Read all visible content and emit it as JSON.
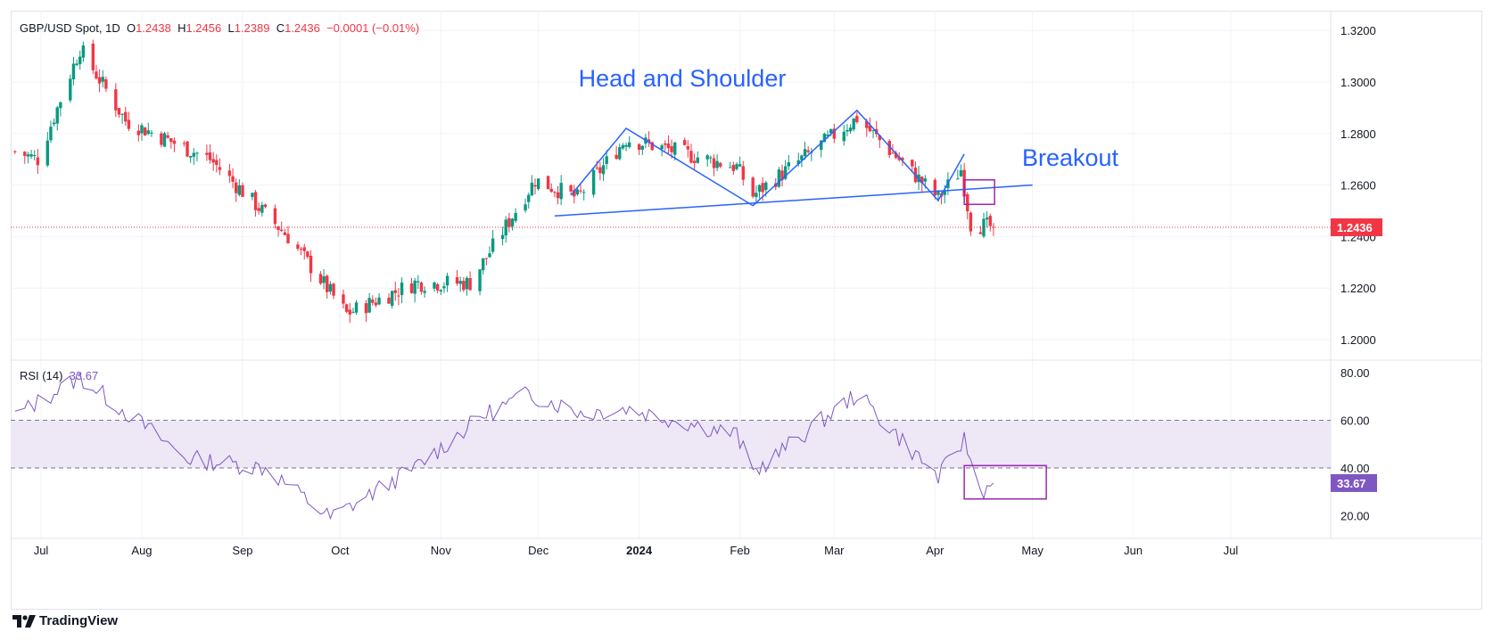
{
  "header": {
    "symbol": "GBP/USD Spot, 1D",
    "o_label": "O",
    "o_value": "1.2438",
    "h_label": "H",
    "h_value": "1.2456",
    "l_label": "L",
    "l_value": "1.2389",
    "c_label": "C",
    "c_value": "1.2436",
    "change": "−0.0001 (−0.01%)"
  },
  "rsi_legend": {
    "name": "RSI (14)",
    "value": "33.67"
  },
  "branding": {
    "name": "TradingView"
  },
  "colors": {
    "up": "#089981",
    "down": "#f23645",
    "rsi": "#7e57c2",
    "annotation": "#2962ff",
    "box": "#9c27b0",
    "band": "#ede7f6"
  },
  "chart_data": [
    {
      "type": "candlestick",
      "title": "GBP/USD Spot, 1D",
      "xlabel": "",
      "ylabel": "",
      "ylim": [
        1.195,
        1.3265
      ],
      "y_ticks": [
        "1.2000",
        "1.2200",
        "1.2400",
        "1.2600",
        "1.2800",
        "1.3000",
        "1.3200"
      ],
      "x_ticks": [
        "Jul",
        "Aug",
        "Sep",
        "Oct",
        "Nov",
        "Dec",
        "2024",
        "Feb",
        "Mar",
        "Apr",
        "May",
        "Jun",
        "Jul"
      ],
      "last_price": "1.2436",
      "key_closes": [
        {
          "date": "2023-06-23",
          "close": 1.273
        },
        {
          "date": "2023-06-30",
          "close": 1.27
        },
        {
          "date": "2023-07-13",
          "close": 1.313
        },
        {
          "date": "2023-07-27",
          "close": 1.285
        },
        {
          "date": "2023-08-22",
          "close": 1.27
        },
        {
          "date": "2023-09-15",
          "close": 1.24
        },
        {
          "date": "2023-10-03",
          "close": 1.21
        },
        {
          "date": "2023-10-24",
          "close": 1.222
        },
        {
          "date": "2023-11-10",
          "close": 1.222
        },
        {
          "date": "2023-11-30",
          "close": 1.262
        },
        {
          "date": "2023-12-13",
          "close": 1.255
        },
        {
          "date": "2023-12-28",
          "close": 1.278
        },
        {
          "date": "2024-01-31",
          "close": 1.267
        },
        {
          "date": "2024-02-05",
          "close": 1.256
        },
        {
          "date": "2024-03-08",
          "close": 1.286
        },
        {
          "date": "2024-04-02",
          "close": 1.255
        },
        {
          "date": "2024-04-09",
          "close": 1.266
        },
        {
          "date": "2024-04-12",
          "close": 1.245
        },
        {
          "date": "2024-04-19",
          "close": 1.2436
        }
      ],
      "annotations": [
        {
          "text": "Head and Shoulder"
        },
        {
          "text": "Breakout"
        }
      ],
      "neckline": [
        {
          "date": "2023-12-06",
          "price": 1.248
        },
        {
          "date": "2024-05-01",
          "price": 1.26
        }
      ],
      "pattern_lines": [
        [
          {
            "date": "2023-12-11",
            "price": 1.256
          },
          {
            "date": "2023-12-28",
            "price": 1.282
          },
          {
            "date": "2024-02-05",
            "price": 1.252
          },
          {
            "date": "2024-03-08",
            "price": 1.289
          },
          {
            "date": "2024-04-02",
            "price": 1.254
          },
          {
            "date": "2024-04-10",
            "price": 1.272
          }
        ]
      ]
    },
    {
      "type": "line",
      "title": "RSI (14)",
      "ylim": [
        14,
        84
      ],
      "y_ticks": [
        "20.00",
        "40.00",
        "60.00",
        "80.00"
      ],
      "band": [
        40,
        60
      ],
      "last_value": "33.67",
      "key_values": [
        {
          "date": "2023-06-23",
          "value": 62
        },
        {
          "date": "2023-07-13",
          "value": 78
        },
        {
          "date": "2023-08-15",
          "value": 44
        },
        {
          "date": "2023-09-08",
          "value": 40
        },
        {
          "date": "2023-09-28",
          "value": 19
        },
        {
          "date": "2023-10-24",
          "value": 40
        },
        {
          "date": "2023-11-14",
          "value": 62
        },
        {
          "date": "2023-11-28",
          "value": 71
        },
        {
          "date": "2023-12-15",
          "value": 63
        },
        {
          "date": "2023-12-28",
          "value": 65
        },
        {
          "date": "2024-01-31",
          "value": 54
        },
        {
          "date": "2024-02-05",
          "value": 38
        },
        {
          "date": "2024-03-08",
          "value": 71
        },
        {
          "date": "2024-04-02",
          "value": 36
        },
        {
          "date": "2024-04-10",
          "value": 52
        },
        {
          "date": "2024-04-15",
          "value": 30
        },
        {
          "date": "2024-04-19",
          "value": 33.67
        }
      ]
    }
  ]
}
